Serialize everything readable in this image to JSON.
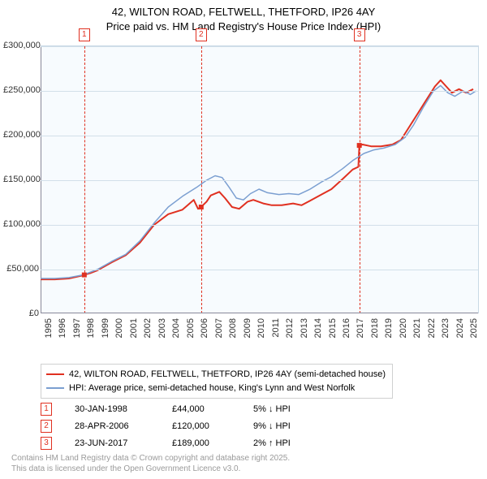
{
  "title_line1": "42, WILTON ROAD, FELTWELL, THETFORD, IP26 4AY",
  "title_line2": "Price paid vs. HM Land Registry's House Price Index (HPI)",
  "chart": {
    "type": "line",
    "background_color": "#f7fbfe",
    "grid_color": "#d2dfe9",
    "axis_color": "#808090",
    "ylim": [
      0,
      300000
    ],
    "ytick_step": 50000,
    "yticks": [
      "£0",
      "£50,000",
      "£100,000",
      "£150,000",
      "£200,000",
      "£250,000",
      "£300,000"
    ],
    "xlim": [
      1995,
      2025.9
    ],
    "xticks": [
      1995,
      1996,
      1997,
      1998,
      1999,
      2000,
      2001,
      2002,
      2003,
      2004,
      2005,
      2006,
      2007,
      2008,
      2009,
      2010,
      2011,
      2012,
      2013,
      2014,
      2015,
      2016,
      2017,
      2018,
      2019,
      2020,
      2021,
      2022,
      2023,
      2024,
      2025
    ],
    "markers": [
      {
        "id": "1",
        "x": 1998.08
      },
      {
        "id": "2",
        "x": 2006.32
      },
      {
        "id": "3",
        "x": 2017.47
      }
    ],
    "series": [
      {
        "name": "price_paid",
        "color": "#e03020",
        "width": 2,
        "points": [
          [
            1995.0,
            39000
          ],
          [
            1996.0,
            39000
          ],
          [
            1997.0,
            40000
          ],
          [
            1998.0,
            43500
          ],
          [
            1998.08,
            44000
          ],
          [
            1998.5,
            46000
          ],
          [
            1999.0,
            49000
          ],
          [
            2000.0,
            58000
          ],
          [
            2001.0,
            66000
          ],
          [
            2002.0,
            80000
          ],
          [
            2003.0,
            100000
          ],
          [
            2004.0,
            112000
          ],
          [
            2005.0,
            117000
          ],
          [
            2005.8,
            128000
          ],
          [
            2006.1,
            118000
          ],
          [
            2006.32,
            120000
          ],
          [
            2006.7,
            126000
          ],
          [
            2007.0,
            133000
          ],
          [
            2007.6,
            137000
          ],
          [
            2008.0,
            130000
          ],
          [
            2008.5,
            120000
          ],
          [
            2009.0,
            118000
          ],
          [
            2009.6,
            126000
          ],
          [
            2010.0,
            128000
          ],
          [
            2010.7,
            124000
          ],
          [
            2011.3,
            122000
          ],
          [
            2012.0,
            122000
          ],
          [
            2012.8,
            124000
          ],
          [
            2013.4,
            122000
          ],
          [
            2014.0,
            127000
          ],
          [
            2014.8,
            134000
          ],
          [
            2015.5,
            140000
          ],
          [
            2016.2,
            150000
          ],
          [
            2017.0,
            162000
          ],
          [
            2017.4,
            165000
          ],
          [
            2017.47,
            189000
          ],
          [
            2017.7,
            190000
          ],
          [
            2018.3,
            188000
          ],
          [
            2019.0,
            188000
          ],
          [
            2019.8,
            190000
          ],
          [
            2020.4,
            195000
          ],
          [
            2021.0,
            210000
          ],
          [
            2021.6,
            225000
          ],
          [
            2022.2,
            240000
          ],
          [
            2022.8,
            255000
          ],
          [
            2023.2,
            262000
          ],
          [
            2023.6,
            255000
          ],
          [
            2024.0,
            248000
          ],
          [
            2024.5,
            252000
          ],
          [
            2025.0,
            248000
          ],
          [
            2025.5,
            252000
          ]
        ]
      },
      {
        "name": "hpi",
        "color": "#7b9fd1",
        "width": 1.5,
        "points": [
          [
            1995.0,
            40000
          ],
          [
            1996.0,
            40000
          ],
          [
            1997.0,
            41000
          ],
          [
            1998.0,
            44000
          ],
          [
            1999.0,
            50000
          ],
          [
            2000.0,
            59000
          ],
          [
            2001.0,
            67000
          ],
          [
            2002.0,
            82000
          ],
          [
            2003.0,
            102000
          ],
          [
            2004.0,
            120000
          ],
          [
            2005.0,
            132000
          ],
          [
            2006.0,
            142000
          ],
          [
            2006.7,
            150000
          ],
          [
            2007.3,
            155000
          ],
          [
            2007.8,
            153000
          ],
          [
            2008.3,
            142000
          ],
          [
            2008.8,
            130000
          ],
          [
            2009.3,
            128000
          ],
          [
            2009.8,
            135000
          ],
          [
            2010.4,
            140000
          ],
          [
            2011.0,
            136000
          ],
          [
            2011.8,
            134000
          ],
          [
            2012.5,
            135000
          ],
          [
            2013.2,
            134000
          ],
          [
            2014.0,
            140000
          ],
          [
            2014.8,
            148000
          ],
          [
            2015.5,
            154000
          ],
          [
            2016.3,
            163000
          ],
          [
            2017.0,
            172000
          ],
          [
            2017.8,
            180000
          ],
          [
            2018.5,
            184000
          ],
          [
            2019.2,
            186000
          ],
          [
            2020.0,
            190000
          ],
          [
            2020.7,
            198000
          ],
          [
            2021.3,
            212000
          ],
          [
            2022.0,
            232000
          ],
          [
            2022.7,
            250000
          ],
          [
            2023.2,
            256000
          ],
          [
            2023.7,
            248000
          ],
          [
            2024.2,
            244000
          ],
          [
            2024.8,
            250000
          ],
          [
            2025.3,
            246000
          ],
          [
            2025.7,
            250000
          ]
        ]
      }
    ]
  },
  "legend": {
    "series1_label": "42, WILTON ROAD, FELTWELL, THETFORD, IP26 4AY (semi-detached house)",
    "series1_color": "#e03020",
    "series2_label": "HPI: Average price, semi-detached house, King's Lynn and West Norfolk",
    "series2_color": "#7b9fd1"
  },
  "events": [
    {
      "id": "1",
      "date": "30-JAN-1998",
      "price": "£44,000",
      "delta": "5%",
      "arrow": "↓",
      "suffix": "HPI"
    },
    {
      "id": "2",
      "date": "28-APR-2006",
      "price": "£120,000",
      "delta": "9%",
      "arrow": "↓",
      "suffix": "HPI"
    },
    {
      "id": "3",
      "date": "23-JUN-2017",
      "price": "£189,000",
      "delta": "2%",
      "arrow": "↑",
      "suffix": "HPI"
    }
  ],
  "attribution": {
    "line1": "Contains HM Land Registry data © Crown copyright and database right 2025.",
    "line2": "This data is licensed under the Open Government Licence v3.0."
  }
}
